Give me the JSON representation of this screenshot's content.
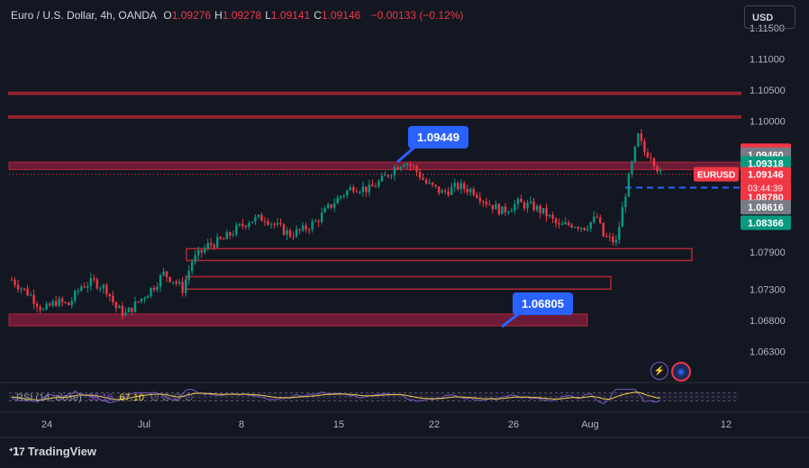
{
  "header": {
    "symbol_title": "Euro / U.S. Dollar, 4h, OANDA",
    "ohlc": [
      {
        "label": "O",
        "value": "1.09276"
      },
      {
        "label": "H",
        "value": "1.09278"
      },
      {
        "label": "L",
        "value": "1.09141"
      },
      {
        "label": "C",
        "value": "1.09146"
      }
    ],
    "change": "−0.00133 (−0.12%)"
  },
  "currency_button": "USD",
  "rsi": {
    "label": "RSI (14, close)",
    "value_1": "55.16",
    "value_2": "67.10",
    "placeholders": "∅ ∅ ∅ ∅"
  },
  "callouts": {
    "upper": "1.09449",
    "lower": "1.06805"
  },
  "price_tags": {
    "symbol": "EURUSD",
    "countdown": "03:44:39"
  },
  "branding": "TradingView",
  "icons": [
    "lightning-icon",
    "globe-icon"
  ],
  "colors": {
    "background": "#131722",
    "up": "#089981",
    "down": "#f23645",
    "zone_line": "#b22833",
    "zone_fill": "#8b1e3f",
    "callout": "#2962ff",
    "rsi_line": "#7e57c2",
    "rsi_ma": "#f2d34c"
  },
  "chart_data": {
    "type": "candlestick",
    "title": "Euro / U.S. Dollar, 4h, OANDA",
    "xlabel": "",
    "ylabel": "",
    "ylim": [
      1.058,
      1.118
    ],
    "y_ticks": [
      "1.11500",
      "1.11000",
      "1.10500",
      "1.10000",
      "1.09525",
      "1.09460",
      "1.09318",
      "1.09146",
      "1.08780",
      "1.08616",
      "1.08366",
      "1.07900",
      "1.07300",
      "1.06800",
      "1.06300"
    ],
    "plain_y_ticks": [
      1.115,
      1.11,
      1.105,
      1.1,
      1.079,
      1.073,
      1.068,
      1.063
    ],
    "x_ticks": [
      "24",
      "Jul",
      "8",
      "15",
      "22",
      "26",
      "Aug",
      "12"
    ],
    "price_labels": [
      {
        "text": "1.09525",
        "price": 1.09525,
        "bg": "#f23645"
      },
      {
        "text": "1.09460",
        "price": 1.0946,
        "bg": "#787b86"
      },
      {
        "text": "1.09318",
        "price": 1.09318,
        "bg": "#089981"
      },
      {
        "text": "1.09146",
        "price": 1.09146,
        "bg": "#f23645"
      },
      {
        "text": "1.08780",
        "price": 1.0878,
        "bg": "#f23645"
      },
      {
        "text": "1.08616",
        "price": 1.08616,
        "bg": "#787b86"
      },
      {
        "text": "1.08366",
        "price": 1.08366,
        "bg": "#089981"
      }
    ],
    "zones": [
      {
        "top": 1.1046,
        "bottom": 1.1045,
        "type": "line"
      },
      {
        "top": 1.1008,
        "bottom": 1.1006,
        "type": "line"
      },
      {
        "top": 1.0934,
        "bottom": 1.0922,
        "type": "fill"
      },
      {
        "top": 1.0795,
        "bottom": 1.0776,
        "type": "box"
      },
      {
        "top": 1.075,
        "bottom": 1.073,
        "type": "box"
      },
      {
        "top": 1.069,
        "bottom": 1.0671,
        "type": "fill"
      }
    ],
    "dashed_level": 1.0893,
    "last_close": 1.09146,
    "waypoints": [
      [
        0,
        1.0745
      ],
      [
        6,
        1.072
      ],
      [
        10,
        1.0695
      ],
      [
        14,
        1.071
      ],
      [
        18,
        1.0705
      ],
      [
        22,
        1.0735
      ],
      [
        26,
        1.0742
      ],
      [
        30,
        1.073
      ],
      [
        33,
        1.07
      ],
      [
        36,
        1.069
      ],
      [
        40,
        1.071
      ],
      [
        45,
        1.0735
      ],
      [
        48,
        1.0755
      ],
      [
        51,
        1.0745
      ],
      [
        54,
        1.073
      ],
      [
        57,
        1.0775
      ],
      [
        62,
        1.08
      ],
      [
        67,
        1.081
      ],
      [
        71,
        1.0826
      ],
      [
        75,
        1.084
      ],
      [
        80,
        1.0845
      ],
      [
        84,
        1.083
      ],
      [
        88,
        1.0818
      ],
      [
        92,
        1.0825
      ],
      [
        96,
        1.0838
      ],
      [
        100,
        1.086
      ],
      [
        104,
        1.088
      ],
      [
        108,
        1.0895
      ],
      [
        113,
        1.089
      ],
      [
        117,
        1.0905
      ],
      [
        121,
        1.0925
      ],
      [
        124,
        1.0936
      ],
      [
        127,
        1.0925
      ],
      [
        131,
        1.09
      ],
      [
        136,
        1.0885
      ],
      [
        141,
        1.0895
      ],
      [
        146,
        1.0888
      ],
      [
        150,
        1.087
      ],
      [
        155,
        1.0855
      ],
      [
        160,
        1.0868
      ],
      [
        165,
        1.0862
      ],
      [
        169,
        1.085
      ],
      [
        173,
        1.083
      ],
      [
        177,
        1.0835
      ],
      [
        181,
        1.083
      ],
      [
        185,
        1.0845
      ],
      [
        187,
        1.0815
      ],
      [
        191,
        1.0805
      ],
      [
        194,
        1.0885
      ],
      [
        196,
        1.093
      ],
      [
        198,
        1.0975
      ],
      [
        200,
        1.095
      ],
      [
        202,
        1.0946
      ],
      [
        205,
        1.09146
      ]
    ],
    "rsi_range": [
      0,
      100
    ],
    "rsi_levels": [
      70,
      50,
      30
    ]
  }
}
